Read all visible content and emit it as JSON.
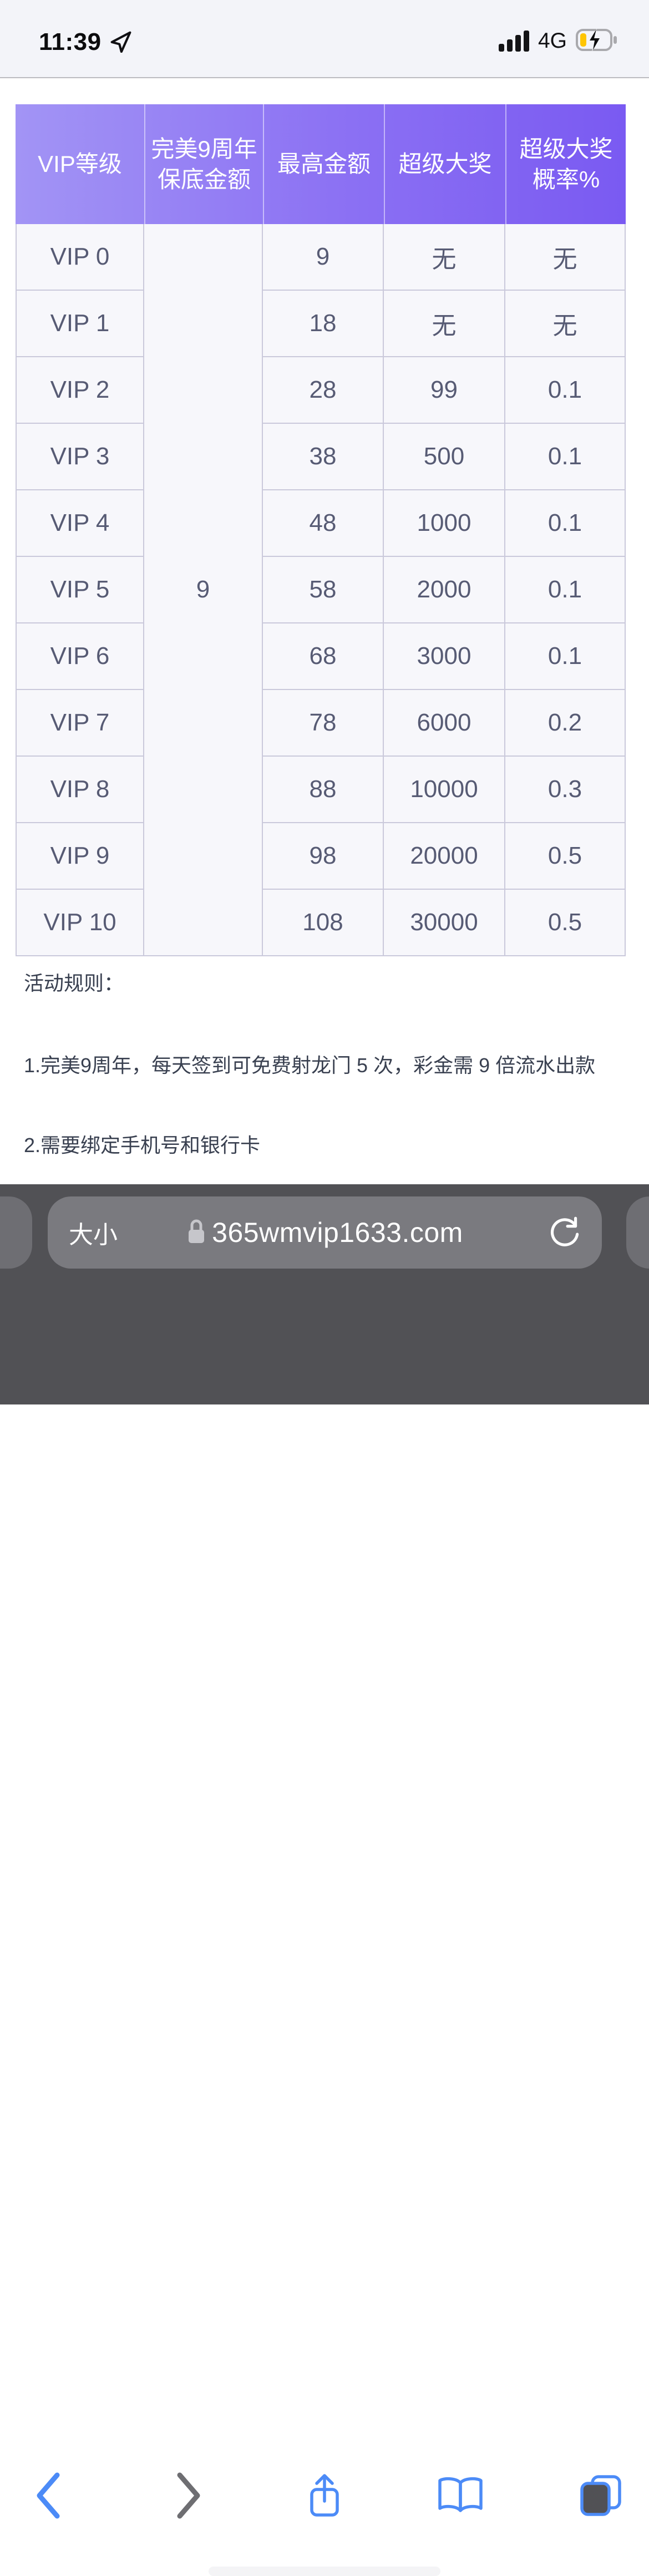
{
  "status_bar": {
    "time": "11:39",
    "network": "4G",
    "icons": {
      "location": "location-arrow-icon",
      "signal": "cellular-signal-icon",
      "battery": "battery-charging-icon"
    }
  },
  "vip_table": {
    "headers": [
      "VIP等级",
      "完美9周年\n保底金额",
      "最高金额",
      "超级大奖",
      "超级大奖\n概率%"
    ],
    "guaranteed_amount": "9",
    "rows": [
      {
        "level": "VIP 0",
        "max_amount": "9",
        "super_prize": "无",
        "super_prize_rate": "无"
      },
      {
        "level": "VIP 1",
        "max_amount": "18",
        "super_prize": "无",
        "super_prize_rate": "无"
      },
      {
        "level": "VIP 2",
        "max_amount": "28",
        "super_prize": "99",
        "super_prize_rate": "0.1"
      },
      {
        "level": "VIP 3",
        "max_amount": "38",
        "super_prize": "500",
        "super_prize_rate": "0.1"
      },
      {
        "level": "VIP 4",
        "max_amount": "48",
        "super_prize": "1000",
        "super_prize_rate": "0.1"
      },
      {
        "level": "VIP 5",
        "max_amount": "58",
        "super_prize": "2000",
        "super_prize_rate": "0.1"
      },
      {
        "level": "VIP 6",
        "max_amount": "68",
        "super_prize": "3000",
        "super_prize_rate": "0.1"
      },
      {
        "level": "VIP 7",
        "max_amount": "78",
        "super_prize": "6000",
        "super_prize_rate": "0.2"
      },
      {
        "level": "VIP 8",
        "max_amount": "88",
        "super_prize": "10000",
        "super_prize_rate": "0.3"
      },
      {
        "level": "VIP 9",
        "max_amount": "98",
        "super_prize": "20000",
        "super_prize_rate": "0.5"
      },
      {
        "level": "VIP 10",
        "max_amount": "108",
        "super_prize": "30000",
        "super_prize_rate": "0.5"
      }
    ]
  },
  "rules": {
    "title": "活动规则：",
    "items": [
      "1.完美9周年，每天签到可免费射龙门 5 次，彩金需 9 倍流水出款",
      "2.需要绑定手机号和银行卡"
    ]
  },
  "browser": {
    "text_size_label": "大小",
    "url": "365wmvip1633.com"
  },
  "colors": {
    "header_gradient_start": "#a294f5",
    "header_gradient_end": "#7a5af2",
    "toolbar_accent": "#4c8bf7",
    "battery_charge": "#ffc502",
    "bottom_bar": "#515155",
    "status_bar_bg": "#f3f4f9"
  }
}
